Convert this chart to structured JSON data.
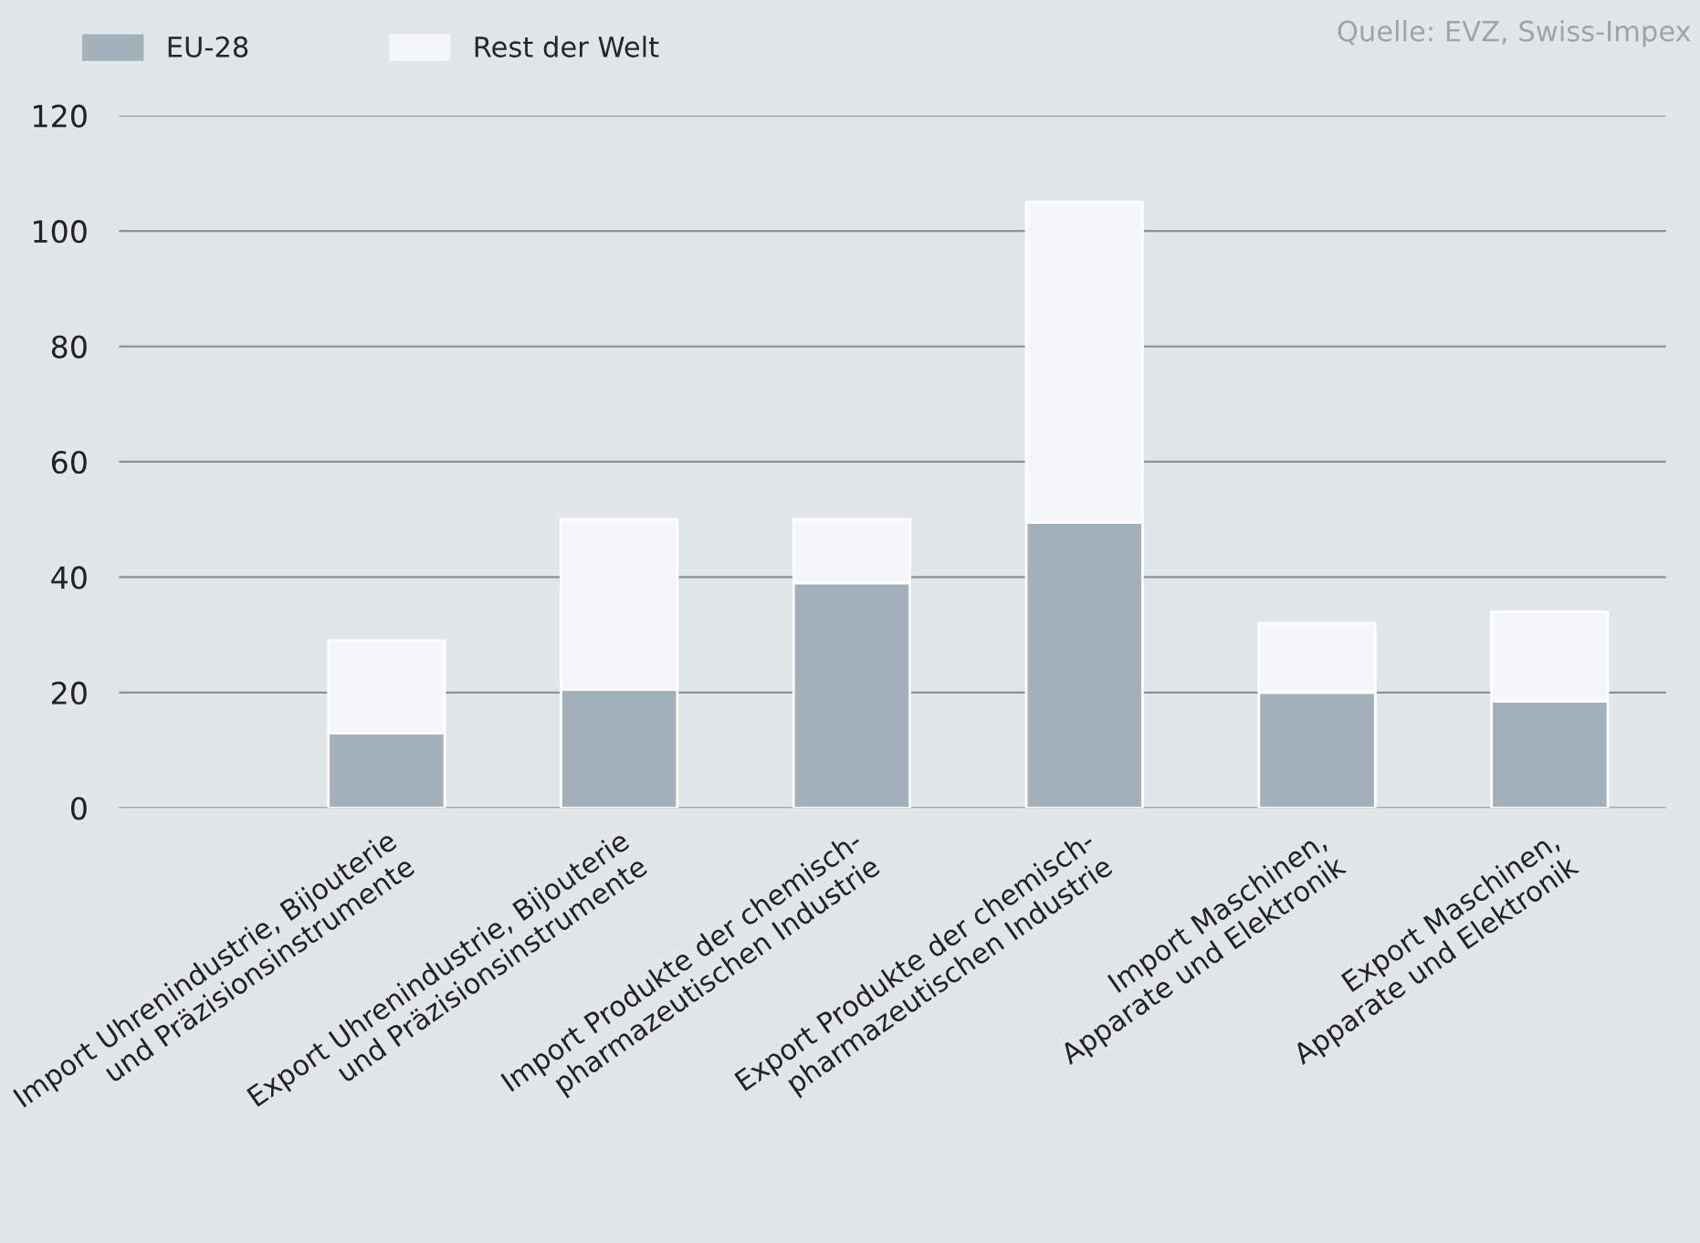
{
  "chart_data": {
    "type": "bar",
    "stacked": true,
    "categories": [
      "Import Uhrenindustrie, Bijouterie\nund Präzisionsinstrumente",
      "Export Uhrenindustrie, Bijouterie\nund Präzisionsinstrumente",
      "Import Produkte der chemisch-\npharmazeutischen Industrie",
      "Export Produkte der chemisch-\npharmazeutischen Industrie",
      "Import Maschinen,\nApparate und Elektronik",
      "Export Maschinen,\nApparate und Elektronik"
    ],
    "series": [
      {
        "name": "EU-28",
        "color": "#a3b1ba",
        "values": [
          13,
          20.5,
          39,
          49.5,
          20,
          18.5
        ]
      },
      {
        "name": "Rest der Welt",
        "color": "#f4f6f8",
        "values": [
          16,
          29.5,
          11,
          55.5,
          12,
          15.5
        ]
      }
    ],
    "ylim": [
      0,
      120
    ],
    "yticks": [
      0,
      20,
      40,
      60,
      80,
      100,
      120
    ],
    "grid": "y",
    "legend": "top left",
    "annotations": [
      "Quelle: EVZ, Swiss-Impex"
    ]
  }
}
